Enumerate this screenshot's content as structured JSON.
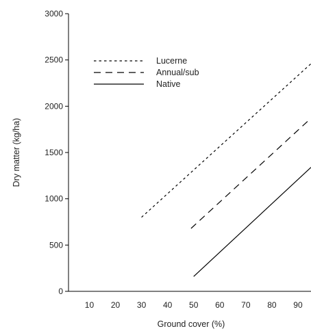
{
  "chart_data": {
    "type": "line",
    "xlabel": "Ground cover (%)",
    "ylabel": "Dry matter (kg/ha)",
    "xlim": [
      2,
      95
    ],
    "ylim": [
      0,
      3000
    ],
    "x_ticks": [
      10,
      20,
      30,
      40,
      50,
      60,
      70,
      80,
      90
    ],
    "y_ticks": [
      0,
      500,
      1000,
      1500,
      2000,
      2500,
      3000
    ],
    "grid": false,
    "legend_position": "top-left",
    "series": [
      {
        "name": "Lucerne",
        "style": "dotted",
        "x": [
          30,
          95
        ],
        "y": [
          800,
          2460
        ]
      },
      {
        "name": "Annual/sub",
        "style": "dashed",
        "x": [
          49,
          95
        ],
        "y": [
          680,
          1870
        ]
      },
      {
        "name": "Native",
        "style": "solid",
        "x": [
          50,
          95
        ],
        "y": [
          160,
          1340
        ]
      }
    ]
  }
}
